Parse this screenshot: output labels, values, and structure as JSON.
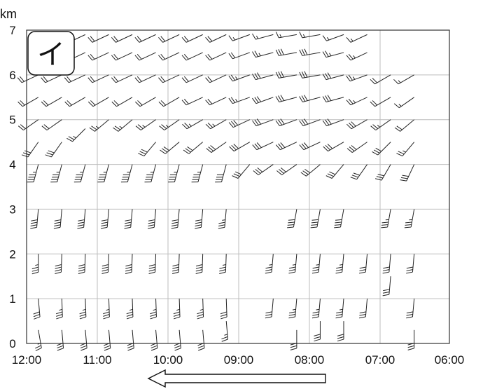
{
  "chart_data": {
    "type": "wind-barb profile",
    "y_unit": "km",
    "panel_label": "イ",
    "x_ticks": [
      "12:00",
      "11:00",
      "10:00",
      "09:00",
      "08:00",
      "07:00",
      "06:00"
    ],
    "y_ticks": [
      "0",
      "1",
      "2",
      "3",
      "4",
      "5",
      "6",
      "7"
    ],
    "ylim": [
      0,
      7
    ],
    "x_direction": "time runs right-to-left (latest at left)",
    "grid": true,
    "arrow_direction": "left",
    "profiles": [
      {
        "time": "11:50",
        "levels": [
          {
            "z": 0.3,
            "dir": 170,
            "spd": 25
          },
          {
            "z": 1.0,
            "dir": 175,
            "spd": 30
          },
          {
            "z": 2.0,
            "dir": 180,
            "spd": 35
          },
          {
            "z": 3.0,
            "dir": 185,
            "spd": 40
          },
          {
            "z": 4.0,
            "dir": 195,
            "spd": 45
          },
          {
            "z": 4.5,
            "dir": 215,
            "spd": 30
          },
          {
            "z": 5.0,
            "dir": 235,
            "spd": 20
          },
          {
            "z": 5.5,
            "dir": 240,
            "spd": 20
          },
          {
            "z": 6.0,
            "dir": 245,
            "spd": 20
          }
        ]
      },
      {
        "time": "11:30",
        "levels": [
          {
            "z": 0.3,
            "dir": 175,
            "spd": 30
          },
          {
            "z": 1.0,
            "dir": 178,
            "spd": 35
          },
          {
            "z": 2.0,
            "dir": 182,
            "spd": 40
          },
          {
            "z": 3.0,
            "dir": 185,
            "spd": 40
          },
          {
            "z": 4.0,
            "dir": 195,
            "spd": 45
          },
          {
            "z": 4.5,
            "dir": 215,
            "spd": 30
          },
          {
            "z": 5.0,
            "dir": 235,
            "spd": 20
          },
          {
            "z": 5.5,
            "dir": 240,
            "spd": 20
          },
          {
            "z": 6.0,
            "dir": 245,
            "spd": 20
          }
        ]
      },
      {
        "time": "11:10",
        "levels": [
          {
            "z": 0.3,
            "dir": 175,
            "spd": 30
          },
          {
            "z": 1.0,
            "dir": 178,
            "spd": 35
          },
          {
            "z": 2.0,
            "dir": 182,
            "spd": 40
          },
          {
            "z": 3.0,
            "dir": 185,
            "spd": 40
          },
          {
            "z": 4.0,
            "dir": 195,
            "spd": 45
          },
          {
            "z": 4.8,
            "dir": 225,
            "spd": 25
          },
          {
            "z": 5.5,
            "dir": 240,
            "spd": 20
          },
          {
            "z": 6.0,
            "dir": 245,
            "spd": 20
          },
          {
            "z": 6.5,
            "dir": 245,
            "spd": 20
          },
          {
            "z": 6.9,
            "dir": 245,
            "spd": 20
          }
        ]
      },
      {
        "time": "10:50",
        "levels": [
          {
            "z": 0.3,
            "dir": 175,
            "spd": 30
          },
          {
            "z": 1.0,
            "dir": 178,
            "spd": 35
          },
          {
            "z": 2.0,
            "dir": 182,
            "spd": 40
          },
          {
            "z": 3.0,
            "dir": 185,
            "spd": 40
          },
          {
            "z": 4.0,
            "dir": 195,
            "spd": 45
          },
          {
            "z": 5.0,
            "dir": 230,
            "spd": 25
          },
          {
            "z": 5.5,
            "dir": 240,
            "spd": 20
          },
          {
            "z": 6.0,
            "dir": 245,
            "spd": 20
          },
          {
            "z": 6.5,
            "dir": 245,
            "spd": 20
          },
          {
            "z": 6.9,
            "dir": 245,
            "spd": 20
          }
        ]
      },
      {
        "time": "10:30",
        "levels": [
          {
            "z": 0.3,
            "dir": 175,
            "spd": 30
          },
          {
            "z": 1.0,
            "dir": 178,
            "spd": 35
          },
          {
            "z": 2.0,
            "dir": 182,
            "spd": 40
          },
          {
            "z": 3.0,
            "dir": 185,
            "spd": 40
          },
          {
            "z": 4.0,
            "dir": 195,
            "spd": 45
          },
          {
            "z": 5.0,
            "dir": 230,
            "spd": 25
          },
          {
            "z": 5.5,
            "dir": 240,
            "spd": 20
          },
          {
            "z": 6.0,
            "dir": 245,
            "spd": 20
          },
          {
            "z": 6.5,
            "dir": 245,
            "spd": 20
          },
          {
            "z": 6.9,
            "dir": 245,
            "spd": 20
          }
        ]
      },
      {
        "time": "10:10",
        "levels": [
          {
            "z": 0.3,
            "dir": 175,
            "spd": 30
          },
          {
            "z": 1.0,
            "dir": 178,
            "spd": 35
          },
          {
            "z": 2.0,
            "dir": 182,
            "spd": 40
          },
          {
            "z": 3.0,
            "dir": 185,
            "spd": 40
          },
          {
            "z": 4.0,
            "dir": 195,
            "spd": 45
          },
          {
            "z": 4.5,
            "dir": 220,
            "spd": 30
          },
          {
            "z": 5.0,
            "dir": 235,
            "spd": 25
          },
          {
            "z": 5.5,
            "dir": 240,
            "spd": 20
          },
          {
            "z": 6.0,
            "dir": 245,
            "spd": 20
          },
          {
            "z": 6.5,
            "dir": 245,
            "spd": 20
          },
          {
            "z": 6.9,
            "dir": 245,
            "spd": 20
          }
        ]
      },
      {
        "time": "09:50",
        "levels": [
          {
            "z": 0.3,
            "dir": 175,
            "spd": 30
          },
          {
            "z": 1.0,
            "dir": 178,
            "spd": 35
          },
          {
            "z": 2.0,
            "dir": 182,
            "spd": 40
          },
          {
            "z": 3.0,
            "dir": 185,
            "spd": 40
          },
          {
            "z": 4.0,
            "dir": 195,
            "spd": 45
          },
          {
            "z": 4.5,
            "dir": 230,
            "spd": 30
          },
          {
            "z": 5.0,
            "dir": 235,
            "spd": 25
          },
          {
            "z": 5.5,
            "dir": 240,
            "spd": 20
          },
          {
            "z": 6.0,
            "dir": 245,
            "spd": 20
          },
          {
            "z": 6.5,
            "dir": 245,
            "spd": 20
          },
          {
            "z": 6.9,
            "dir": 245,
            "spd": 20
          }
        ]
      },
      {
        "time": "09:30",
        "levels": [
          {
            "z": 0.3,
            "dir": 175,
            "spd": 30
          },
          {
            "z": 1.0,
            "dir": 178,
            "spd": 35
          },
          {
            "z": 2.0,
            "dir": 182,
            "spd": 40
          },
          {
            "z": 3.0,
            "dir": 185,
            "spd": 40
          },
          {
            "z": 4.0,
            "dir": 195,
            "spd": 45
          },
          {
            "z": 4.5,
            "dir": 230,
            "spd": 30
          },
          {
            "z": 5.0,
            "dir": 240,
            "spd": 25
          },
          {
            "z": 5.5,
            "dir": 245,
            "spd": 20
          },
          {
            "z": 6.0,
            "dir": 245,
            "spd": 20
          },
          {
            "z": 6.5,
            "dir": 245,
            "spd": 20
          },
          {
            "z": 6.9,
            "dir": 245,
            "spd": 20
          }
        ]
      },
      {
        "time": "09:10",
        "levels": [
          {
            "z": 0.5,
            "dir": 175,
            "spd": 25
          },
          {
            "z": 1.0,
            "dir": 178,
            "spd": 30
          },
          {
            "z": 2.0,
            "dir": 182,
            "spd": 35
          },
          {
            "z": 3.0,
            "dir": 185,
            "spd": 35
          },
          {
            "z": 4.0,
            "dir": 195,
            "spd": 40
          },
          {
            "z": 4.5,
            "dir": 235,
            "spd": 30
          },
          {
            "z": 5.0,
            "dir": 240,
            "spd": 25
          },
          {
            "z": 5.5,
            "dir": 245,
            "spd": 20
          },
          {
            "z": 6.0,
            "dir": 245,
            "spd": 20
          },
          {
            "z": 6.5,
            "dir": 245,
            "spd": 20
          },
          {
            "z": 6.9,
            "dir": 245,
            "spd": 20
          }
        ]
      },
      {
        "time": "08:50",
        "levels": [
          {
            "z": 4.0,
            "dir": 220,
            "spd": 30
          },
          {
            "z": 4.5,
            "dir": 240,
            "spd": 30
          },
          {
            "z": 5.0,
            "dir": 245,
            "spd": 30
          },
          {
            "z": 5.5,
            "dir": 250,
            "spd": 25
          },
          {
            "z": 6.0,
            "dir": 250,
            "spd": 25
          },
          {
            "z": 6.5,
            "dir": 250,
            "spd": 20
          },
          {
            "z": 6.9,
            "dir": 250,
            "spd": 15
          }
        ]
      },
      {
        "time": "08:30",
        "levels": [
          {
            "z": 1.0,
            "dir": 185,
            "spd": 30
          },
          {
            "z": 2.0,
            "dir": 185,
            "spd": 35
          },
          {
            "z": 4.0,
            "dir": 235,
            "spd": 30
          },
          {
            "z": 4.5,
            "dir": 245,
            "spd": 30
          },
          {
            "z": 5.0,
            "dir": 250,
            "spd": 30
          },
          {
            "z": 5.5,
            "dir": 250,
            "spd": 30
          },
          {
            "z": 6.0,
            "dir": 255,
            "spd": 30
          },
          {
            "z": 6.5,
            "dir": 255,
            "spd": 25
          },
          {
            "z": 6.9,
            "dir": 255,
            "spd": 15
          }
        ]
      },
      {
        "time": "08:10",
        "levels": [
          {
            "z": 0.3,
            "dir": 180,
            "spd": 30
          },
          {
            "z": 1.0,
            "dir": 185,
            "spd": 35
          },
          {
            "z": 2.0,
            "dir": 185,
            "spd": 35
          },
          {
            "z": 3.0,
            "dir": 190,
            "spd": 40
          },
          {
            "z": 4.0,
            "dir": 235,
            "spd": 30
          },
          {
            "z": 4.5,
            "dir": 245,
            "spd": 30
          },
          {
            "z": 5.0,
            "dir": 250,
            "spd": 30
          },
          {
            "z": 5.5,
            "dir": 255,
            "spd": 30
          },
          {
            "z": 6.0,
            "dir": 260,
            "spd": 30
          },
          {
            "z": 6.5,
            "dir": 260,
            "spd": 30
          },
          {
            "z": 6.9,
            "dir": 260,
            "spd": 15
          }
        ]
      },
      {
        "time": "07:50",
        "levels": [
          {
            "z": 0.5,
            "dir": 180,
            "spd": 30
          },
          {
            "z": 1.0,
            "dir": 185,
            "spd": 35
          },
          {
            "z": 2.0,
            "dir": 185,
            "spd": 35
          },
          {
            "z": 3.0,
            "dir": 190,
            "spd": 40
          },
          {
            "z": 4.0,
            "dir": 230,
            "spd": 30
          },
          {
            "z": 4.5,
            "dir": 245,
            "spd": 30
          },
          {
            "z": 5.0,
            "dir": 250,
            "spd": 30
          },
          {
            "z": 5.5,
            "dir": 255,
            "spd": 30
          },
          {
            "z": 6.0,
            "dir": 260,
            "spd": 30
          },
          {
            "z": 6.5,
            "dir": 260,
            "spd": 30
          },
          {
            "z": 6.9,
            "dir": 260,
            "spd": 15
          }
        ]
      },
      {
        "time": "07:30",
        "levels": [
          {
            "z": 0.5,
            "dir": 180,
            "spd": 30
          },
          {
            "z": 1.0,
            "dir": 185,
            "spd": 35
          },
          {
            "z": 2.0,
            "dir": 185,
            "spd": 35
          },
          {
            "z": 3.0,
            "dir": 190,
            "spd": 40
          },
          {
            "z": 4.0,
            "dir": 220,
            "spd": 30
          },
          {
            "z": 4.5,
            "dir": 240,
            "spd": 30
          },
          {
            "z": 5.0,
            "dir": 250,
            "spd": 30
          },
          {
            "z": 5.5,
            "dir": 255,
            "spd": 30
          },
          {
            "z": 6.0,
            "dir": 255,
            "spd": 30
          },
          {
            "z": 6.5,
            "dir": 255,
            "spd": 25
          },
          {
            "z": 6.9,
            "dir": 250,
            "spd": 15
          }
        ]
      },
      {
        "time": "07:10",
        "levels": [
          {
            "z": 1.0,
            "dir": 185,
            "spd": 30
          },
          {
            "z": 2.0,
            "dir": 185,
            "spd": 30
          },
          {
            "z": 4.0,
            "dir": 215,
            "spd": 30
          },
          {
            "z": 4.5,
            "dir": 235,
            "spd": 30
          },
          {
            "z": 5.0,
            "dir": 240,
            "spd": 30
          },
          {
            "z": 5.5,
            "dir": 245,
            "spd": 25
          },
          {
            "z": 6.0,
            "dir": 250,
            "spd": 25
          },
          {
            "z": 6.5,
            "dir": 245,
            "spd": 25
          },
          {
            "z": 6.9,
            "dir": 245,
            "spd": 15
          }
        ]
      },
      {
        "time": "06:50",
        "levels": [
          {
            "z": 1.5,
            "dir": 185,
            "spd": 30
          },
          {
            "z": 2.0,
            "dir": 185,
            "spd": 30
          },
          {
            "z": 3.0,
            "dir": 190,
            "spd": 35
          },
          {
            "z": 4.0,
            "dir": 210,
            "spd": 30
          },
          {
            "z": 4.5,
            "dir": 225,
            "spd": 30
          },
          {
            "z": 5.0,
            "dir": 235,
            "spd": 25
          },
          {
            "z": 5.5,
            "dir": 240,
            "spd": 20
          },
          {
            "z": 6.0,
            "dir": 240,
            "spd": 20
          }
        ]
      },
      {
        "time": "06:30",
        "levels": [
          {
            "z": 0.3,
            "dir": 180,
            "spd": 30
          },
          {
            "z": 1.0,
            "dir": 185,
            "spd": 30
          },
          {
            "z": 2.0,
            "dir": 185,
            "spd": 30
          },
          {
            "z": 3.0,
            "dir": 190,
            "spd": 35
          },
          {
            "z": 4.0,
            "dir": 205,
            "spd": 30
          },
          {
            "z": 4.5,
            "dir": 220,
            "spd": 25
          },
          {
            "z": 5.0,
            "dir": 230,
            "spd": 20
          },
          {
            "z": 5.5,
            "dir": 235,
            "spd": 15
          },
          {
            "z": 6.0,
            "dir": 240,
            "spd": 15
          }
        ]
      }
    ]
  }
}
